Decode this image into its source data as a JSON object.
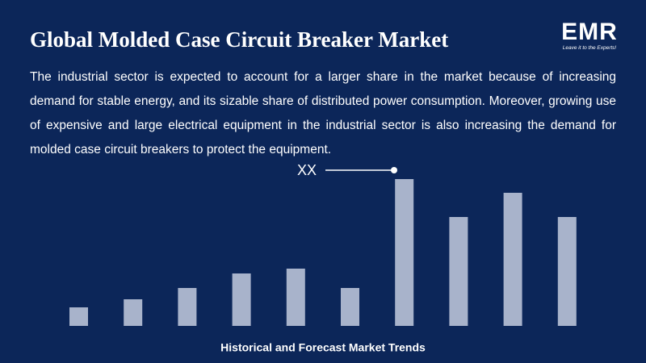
{
  "chart_data": {
    "type": "bar",
    "title": "Global Molded Case Circuit Breaker Market",
    "subtitle": "The industrial sector is expected to account for a larger share in the market because of increasing demand for stable energy, and its sizable share of distributed power consumption. Moreover, growing use of expensive and large electrical equipment in the industrial sector is also increasing the demand for molded case circuit breakers to protect the equipment.",
    "annotation": "XX",
    "xlabel": "Historical and Forecast Market Trends",
    "categories": [
      null,
      null,
      null,
      null,
      null,
      null,
      null,
      null,
      null,
      null
    ],
    "values": [
      23,
      33,
      47,
      65,
      71,
      47,
      182,
      135,
      165,
      135
    ],
    "color": "#a8b3cb"
  },
  "logo": {
    "text": "EMR",
    "tagline": "Leave it to the Experts!"
  }
}
